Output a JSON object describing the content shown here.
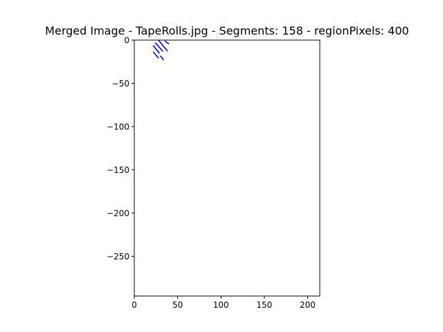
{
  "chart_data": {
    "type": "line",
    "title": "Merged Image - TapeRolls.jpg - Segments: 158 - regionPixels: 400",
    "xlabel": "",
    "ylabel": "",
    "xlim": [
      0,
      214
    ],
    "ylim": [
      -296,
      0
    ],
    "x_ticks": [
      0,
      50,
      100,
      150,
      200
    ],
    "y_ticks": [
      0,
      -50,
      -100,
      -150,
      -200,
      -250
    ],
    "x_tick_labels": [
      "0",
      "50",
      "100",
      "150",
      "200"
    ],
    "y_tick_labels": [
      "0",
      "−50",
      "−100",
      "−150",
      "−200",
      "−250"
    ],
    "grid": false,
    "line_color": "#0000ff",
    "series": [
      {
        "x": [
          21.8,
          29.1
        ],
        "y": [
          -6.1,
          -15.5
        ]
      },
      {
        "x": [
          24.2,
          33.0
        ],
        "y": [
          -2.9,
          -13.1
        ]
      },
      {
        "x": [
          28.0,
          38.3
        ],
        "y": [
          0.0,
          -12.8
        ]
      },
      {
        "x": [
          35.0,
          40.0
        ],
        "y": [
          -1.0,
          -4.4
        ]
      },
      {
        "x": [
          21.8,
          28.0
        ],
        "y": [
          -13.7,
          -20.9
        ]
      },
      {
        "x": [
          30.0,
          34.0
        ],
        "y": [
          -18.1,
          -23.0
        ]
      }
    ]
  }
}
